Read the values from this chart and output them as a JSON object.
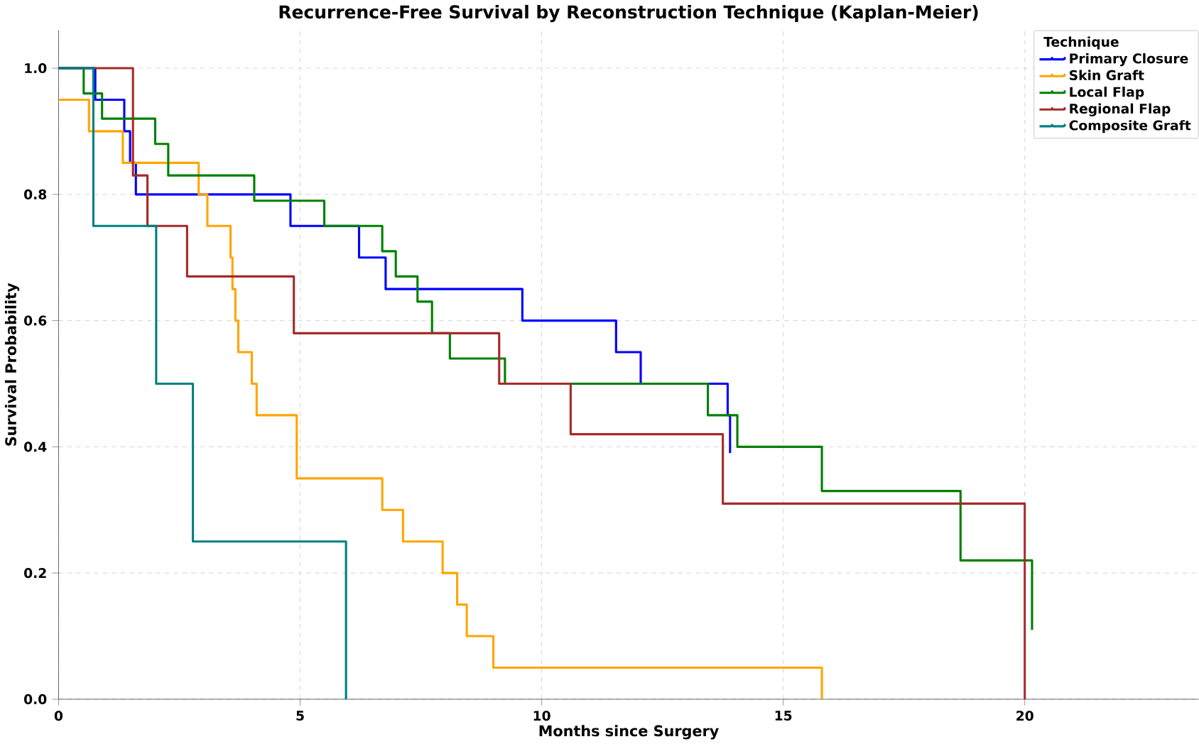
{
  "chart_data": {
    "type": "step",
    "title": "Recurrence-Free Survival by Reconstruction Technique (Kaplan-Meier)",
    "xlabel": "Months since Surgery",
    "ylabel": "Survival Probability",
    "legend_title": "Technique",
    "xlim": [
      0,
      23.6
    ],
    "ylim": [
      0,
      1.06
    ],
    "xticks": [
      0,
      5,
      10,
      15,
      20
    ],
    "yticks": [
      {
        "value": 0,
        "label": "0.0"
      },
      {
        "value": 0.2,
        "label": "0.2"
      },
      {
        "value": 0.4,
        "label": "0.4"
      },
      {
        "value": 0.6,
        "label": "0.6"
      },
      {
        "value": 0.8,
        "label": "0.8"
      },
      {
        "value": 1,
        "label": "1.0"
      }
    ],
    "grid": true,
    "legend": "top right",
    "line_style": "solid",
    "marker": "none",
    "series": [
      {
        "name": "Primary Closure",
        "color": "#0000ff",
        "x": [
          0,
          0.76,
          1.36,
          1.48,
          1.6,
          4.8,
          6.22,
          6.77,
          9.6,
          11.54,
          12.05,
          13.85,
          13.9
        ],
        "values": [
          1,
          0.95,
          0.9,
          0.85,
          0.8,
          0.75,
          0.7,
          0.65,
          0.6,
          0.55,
          0.5,
          0.45,
          0.39
        ]
      },
      {
        "name": "Skin Graft",
        "color": "#ffa500",
        "x": [
          0,
          0.63,
          1.33,
          2.9,
          3.08,
          3.56,
          3.6,
          3.66,
          3.72,
          4.0,
          4.1,
          4.93,
          6.7,
          7.13,
          7.95,
          8.25,
          8.45,
          9.0,
          15.8
        ],
        "values": [
          0.95,
          0.9,
          0.85,
          0.8,
          0.75,
          0.7,
          0.65,
          0.6,
          0.55,
          0.5,
          0.45,
          0.35,
          0.3,
          0.25,
          0.2,
          0.15,
          0.1,
          0.05,
          0
        ]
      },
      {
        "name": "Local Flap",
        "color": "#008000",
        "x": [
          0,
          0.52,
          0.9,
          2.0,
          2.27,
          4.05,
          5.5,
          6.7,
          6.98,
          7.43,
          7.73,
          8.1,
          9.24,
          13.44,
          14.05,
          15.8,
          18.67,
          20.15
        ],
        "values": [
          1,
          0.96,
          0.92,
          0.88,
          0.83,
          0.79,
          0.75,
          0.71,
          0.67,
          0.63,
          0.58,
          0.54,
          0.5,
          0.45,
          0.4,
          0.33,
          0.22,
          0.11
        ]
      },
      {
        "name": "Regional Flap",
        "color": "#a52a2a",
        "x": [
          0,
          1.54,
          1.84,
          2.66,
          4.87,
          9.12,
          10.6,
          13.75,
          20.0
        ],
        "values": [
          1,
          0.83,
          0.75,
          0.67,
          0.58,
          0.5,
          0.42,
          0.31,
          0
        ]
      },
      {
        "name": "Composite Graft",
        "color": "#008080",
        "x": [
          0,
          0.72,
          2.02,
          2.78,
          5.95
        ],
        "values": [
          1,
          0.75,
          0.5,
          0.25,
          0
        ]
      }
    ]
  }
}
